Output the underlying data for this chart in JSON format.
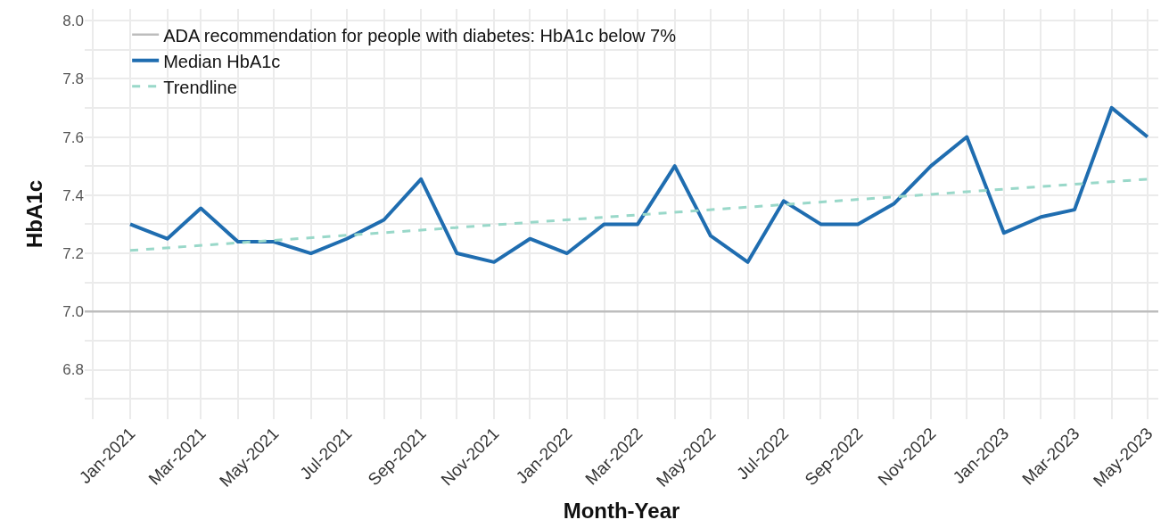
{
  "chart_data": {
    "type": "line",
    "xlabel": "Month-Year",
    "ylabel": "HbA1c",
    "x": [
      "2021-01",
      "2021-02",
      "2021-03",
      "2021-04",
      "2021-05",
      "2021-06",
      "2021-07",
      "2021-08",
      "2021-09",
      "2021-10",
      "2021-11",
      "2021-12",
      "2022-01",
      "2022-02",
      "2022-03",
      "2022-04",
      "2022-05",
      "2022-06",
      "2022-07",
      "2022-08",
      "2022-09",
      "2022-10",
      "2022-11",
      "2022-12",
      "2023-01",
      "2023-02",
      "2023-03",
      "2023-04",
      "2023-05"
    ],
    "series": [
      {
        "name": "Median HbA1c",
        "color": "#1f6db0",
        "line_style": "solid",
        "values": [
          7.3,
          7.25,
          7.355,
          7.24,
          7.24,
          7.2,
          7.25,
          7.315,
          7.455,
          7.2,
          7.17,
          7.25,
          7.2,
          7.3,
          7.3,
          7.5,
          7.26,
          7.17,
          7.38,
          7.3,
          7.3,
          7.37,
          7.5,
          7.6,
          7.27,
          7.325,
          7.35,
          7.7,
          7.6
        ]
      },
      {
        "name": "Trendline",
        "type": "line",
        "color": "#99d8c9",
        "line_style": "dashed",
        "x": [
          "2021-01",
          "2023-05"
        ],
        "values": [
          7.21,
          7.455
        ]
      }
    ],
    "ref_lines": [
      {
        "axis": "y",
        "value": 7.0,
        "label": "ADA recommendation for people with diabetes: HbA1c below 7%",
        "color": "#bdbdbd"
      }
    ],
    "xlim": [
      "2020-11-24",
      "2023-05-10"
    ],
    "xticks": [
      {
        "value": "2020-12",
        "label": null
      },
      {
        "value": "2021-01",
        "label": "Jan-2021"
      },
      {
        "value": "2021-02",
        "label": null
      },
      {
        "value": "2021-03",
        "label": "Mar-2021"
      },
      {
        "value": "2021-04",
        "label": null
      },
      {
        "value": "2021-05",
        "label": "May-2021"
      },
      {
        "value": "2021-06",
        "label": null
      },
      {
        "value": "2021-07",
        "label": "Jul-2021"
      },
      {
        "value": "2021-08",
        "label": null
      },
      {
        "value": "2021-09",
        "label": "Sep-2021"
      },
      {
        "value": "2021-10",
        "label": null
      },
      {
        "value": "2021-11",
        "label": "Nov-2021"
      },
      {
        "value": "2021-12",
        "label": null
      },
      {
        "value": "2022-01",
        "label": "Jan-2022"
      },
      {
        "value": "2022-02",
        "label": null
      },
      {
        "value": "2022-03",
        "label": "Mar-2022"
      },
      {
        "value": "2022-04",
        "label": null
      },
      {
        "value": "2022-05",
        "label": "May-2022"
      },
      {
        "value": "2022-06",
        "label": null
      },
      {
        "value": "2022-07",
        "label": "Jul-2022"
      },
      {
        "value": "2022-08",
        "label": null
      },
      {
        "value": "2022-09",
        "label": "Sep-2022"
      },
      {
        "value": "2022-10",
        "label": null
      },
      {
        "value": "2022-11",
        "label": "Nov-2022"
      },
      {
        "value": "2022-12",
        "label": null
      },
      {
        "value": "2023-01",
        "label": "Jan-2023"
      },
      {
        "value": "2023-02",
        "label": null
      },
      {
        "value": "2023-03",
        "label": "Mar-2023"
      },
      {
        "value": "2023-04",
        "label": null
      },
      {
        "value": "2023-05",
        "label": "May-2023"
      }
    ],
    "ylim": [
      6.63,
      8.04
    ],
    "yticks": [
      {
        "value": 6.7,
        "label": null
      },
      {
        "value": 6.8,
        "label": "6.8"
      },
      {
        "value": 6.9,
        "label": null
      },
      {
        "value": 7.0,
        "label": "7.0"
      },
      {
        "value": 7.1,
        "label": null
      },
      {
        "value": 7.2,
        "label": "7.2"
      },
      {
        "value": 7.3,
        "label": null
      },
      {
        "value": 7.4,
        "label": "7.4"
      },
      {
        "value": 7.5,
        "label": null
      },
      {
        "value": 7.6,
        "label": "7.6"
      },
      {
        "value": 7.7,
        "label": null
      },
      {
        "value": 7.8,
        "label": "7.8"
      },
      {
        "value": 7.9,
        "label": null
      },
      {
        "value": 8.0,
        "label": "8.0"
      }
    ],
    "grid": true,
    "legend": "top left",
    "marker": "none"
  }
}
